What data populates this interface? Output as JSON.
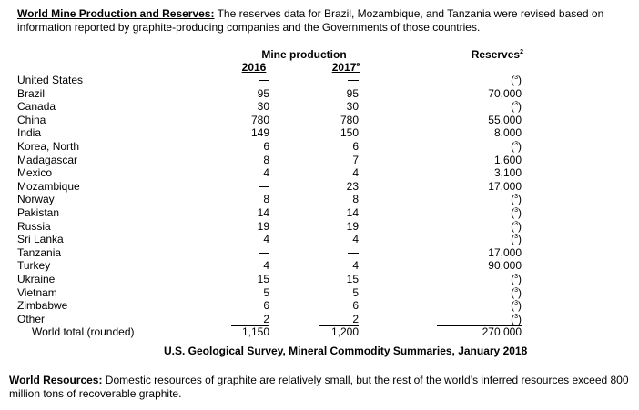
{
  "top_note": {
    "heading": "World Mine Production and Reserves:",
    "text": " The reserves data for Brazil, Mozambique, and Tanzania were revised based on information reported by graphite-producing companies and the Governments of those countries."
  },
  "table": {
    "group_header": "Mine production",
    "col_2016": "2016",
    "col_2017": "2017",
    "col_2017_mark": "e",
    "col_reserves": "Reserves",
    "col_reserves_mark": "2",
    "footnote_mark": "3",
    "rows": [
      {
        "country": "United States",
        "p2016": "—",
        "p2017": "—",
        "reserves": "(3)"
      },
      {
        "country": "Brazil",
        "p2016": "95",
        "p2017": "95",
        "reserves": "70,000"
      },
      {
        "country": "Canada",
        "p2016": "30",
        "p2017": "30",
        "reserves": "(3)"
      },
      {
        "country": "China",
        "p2016": "780",
        "p2017": "780",
        "reserves": "55,000"
      },
      {
        "country": "India",
        "p2016": "149",
        "p2017": "150",
        "reserves": "8,000"
      },
      {
        "country": "Korea, North",
        "p2016": "6",
        "p2017": "6",
        "reserves": "(3)"
      },
      {
        "country": "Madagascar",
        "p2016": "8",
        "p2017": "7",
        "reserves": "1,600"
      },
      {
        "country": "Mexico",
        "p2016": "4",
        "p2017": "4",
        "reserves": "3,100"
      },
      {
        "country": "Mozambique",
        "p2016": "—",
        "p2017": "23",
        "reserves": "17,000"
      },
      {
        "country": "Norway",
        "p2016": "8",
        "p2017": "8",
        "reserves": "(3)"
      },
      {
        "country": "Pakistan",
        "p2016": "14",
        "p2017": "14",
        "reserves": "(3)"
      },
      {
        "country": "Russia",
        "p2016": "19",
        "p2017": "19",
        "reserves": "(3)"
      },
      {
        "country": "Sri Lanka",
        "p2016": "4",
        "p2017": "4",
        "reserves": "(3)"
      },
      {
        "country": "Tanzania",
        "p2016": "—",
        "p2017": "—",
        "reserves": "17,000"
      },
      {
        "country": "Turkey",
        "p2016": "4",
        "p2017": "4",
        "reserves": "90,000"
      },
      {
        "country": "Ukraine",
        "p2016": "15",
        "p2017": "15",
        "reserves": "(3)"
      },
      {
        "country": "Vietnam",
        "p2016": "5",
        "p2017": "5",
        "reserves": "(3)"
      },
      {
        "country": "Zimbabwe",
        "p2016": "6",
        "p2017": "6",
        "reserves": "(3)"
      },
      {
        "country": "Other",
        "p2016": "2",
        "p2017": "2",
        "reserves": "(3)"
      }
    ],
    "total": {
      "label": "World total (rounded)",
      "p2016": "1,150",
      "p2017": "1,200",
      "reserves": "270,000"
    }
  },
  "source_line": "U.S. Geological Survey, Mineral Commodity Summaries, January 2018",
  "bottom_note": {
    "heading": "World Resources:",
    "text": " Domestic resources of graphite are relatively small, but the rest of the world’s inferred resources exceed 800 million tons of recoverable graphite."
  }
}
